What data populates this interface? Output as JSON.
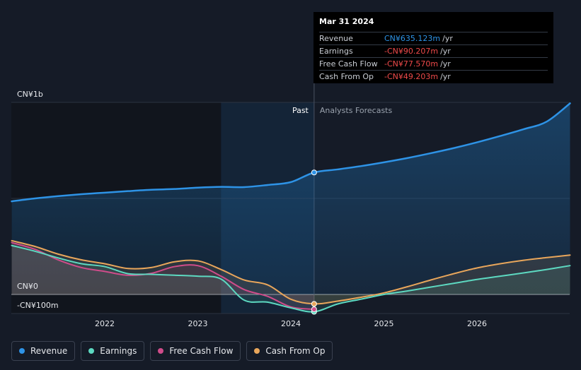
{
  "chart_data": {
    "type": "line",
    "ylim": [
      -100,
      1000
    ],
    "y_ticks": [
      {
        "value": 1000,
        "label": "CN¥1b"
      },
      {
        "value": 0,
        "label": "CN¥0"
      },
      {
        "value": -100,
        "label": "-CN¥100m"
      }
    ],
    "x_ticks": [
      {
        "value": 2022,
        "label": "2022"
      },
      {
        "value": 2023,
        "label": "2023"
      },
      {
        "value": 2024,
        "label": "2024"
      },
      {
        "value": 2025,
        "label": "2025"
      },
      {
        "value": 2026,
        "label": "2026"
      }
    ],
    "xlim": [
      2020.75,
      2027.0
    ],
    "past_label": "Past",
    "forecast_label": "Analysts Forecasts",
    "past_end": 2024.25,
    "highlight_start": 2023.25,
    "series": [
      {
        "name": "Revenue",
        "color": "#2e93e6",
        "points": [
          [
            2021.0,
            485
          ],
          [
            2021.25,
            500
          ],
          [
            2021.5,
            512
          ],
          [
            2021.75,
            522
          ],
          [
            2022.0,
            530
          ],
          [
            2022.25,
            538
          ],
          [
            2022.5,
            545
          ],
          [
            2022.75,
            549
          ],
          [
            2023.0,
            556
          ],
          [
            2023.25,
            560
          ],
          [
            2023.5,
            559
          ],
          [
            2023.75,
            570
          ],
          [
            2024.0,
            585
          ],
          [
            2024.25,
            635.123
          ],
          [
            2024.5,
            651
          ],
          [
            2024.75,
            668
          ],
          [
            2025.0,
            688
          ],
          [
            2025.25,
            710
          ],
          [
            2025.5,
            735
          ],
          [
            2025.75,
            762
          ],
          [
            2026.0,
            792
          ],
          [
            2026.25,
            825
          ],
          [
            2026.5,
            860
          ],
          [
            2026.75,
            900
          ],
          [
            2027.0,
            995
          ]
        ]
      },
      {
        "name": "Earnings",
        "color": "#5dd9c1",
        "points": [
          [
            2021.0,
            255
          ],
          [
            2021.25,
            225
          ],
          [
            2021.5,
            190
          ],
          [
            2021.75,
            160
          ],
          [
            2022.0,
            145
          ],
          [
            2022.25,
            108
          ],
          [
            2022.5,
            105
          ],
          [
            2022.75,
            100
          ],
          [
            2023.0,
            95
          ],
          [
            2023.25,
            80
          ],
          [
            2023.5,
            -30
          ],
          [
            2023.75,
            -40
          ],
          [
            2024.0,
            -70
          ],
          [
            2024.25,
            -90.207
          ],
          [
            2024.5,
            -50
          ],
          [
            2024.75,
            -25
          ],
          [
            2025.0,
            0
          ],
          [
            2025.25,
            18
          ],
          [
            2025.5,
            38
          ],
          [
            2025.75,
            58
          ],
          [
            2026.0,
            78
          ],
          [
            2026.25,
            95
          ],
          [
            2026.5,
            112
          ],
          [
            2026.75,
            130
          ],
          [
            2027.0,
            150
          ]
        ]
      },
      {
        "name": "Free Cash Flow",
        "color": "#cf4c8a",
        "points": [
          [
            2021.0,
            270
          ],
          [
            2021.25,
            235
          ],
          [
            2021.5,
            180
          ],
          [
            2021.75,
            140
          ],
          [
            2022.0,
            120
          ],
          [
            2022.25,
            100
          ],
          [
            2022.5,
            110
          ],
          [
            2022.75,
            145
          ],
          [
            2023.0,
            150
          ],
          [
            2023.25,
            95
          ],
          [
            2023.5,
            25
          ],
          [
            2023.75,
            -10
          ],
          [
            2024.0,
            -65
          ],
          [
            2024.25,
            -77.57
          ]
        ]
      },
      {
        "name": "Cash From Op",
        "color": "#e9a65b",
        "points": [
          [
            2021.0,
            280
          ],
          [
            2021.25,
            250
          ],
          [
            2021.5,
            210
          ],
          [
            2021.75,
            180
          ],
          [
            2022.0,
            160
          ],
          [
            2022.25,
            135
          ],
          [
            2022.5,
            140
          ],
          [
            2022.75,
            170
          ],
          [
            2023.0,
            175
          ],
          [
            2023.25,
            130
          ],
          [
            2023.5,
            75
          ],
          [
            2023.75,
            50
          ],
          [
            2024.0,
            -25
          ],
          [
            2024.25,
            -49.203
          ],
          [
            2024.5,
            -35
          ],
          [
            2024.75,
            -15
          ],
          [
            2025.0,
            8
          ],
          [
            2025.25,
            40
          ],
          [
            2025.5,
            75
          ],
          [
            2025.75,
            108
          ],
          [
            2026.0,
            138
          ],
          [
            2026.25,
            160
          ],
          [
            2026.5,
            178
          ],
          [
            2026.75,
            192
          ],
          [
            2027.0,
            205
          ]
        ]
      }
    ]
  },
  "tooltip": {
    "date": "Mar 31 2024",
    "rows": [
      {
        "label": "Revenue",
        "value": "CN¥635.123m",
        "unit": "/yr",
        "color": "#2e93e6"
      },
      {
        "label": "Earnings",
        "value": "-CN¥90.207m",
        "unit": "/yr",
        "color": "#ef4a4a"
      },
      {
        "label": "Free Cash Flow",
        "value": "-CN¥77.570m",
        "unit": "/yr",
        "color": "#ef4a4a"
      },
      {
        "label": "Cash From Op",
        "value": "-CN¥49.203m",
        "unit": "/yr",
        "color": "#ef4a4a"
      }
    ]
  },
  "legend": [
    {
      "label": "Revenue",
      "color": "#2e93e6"
    },
    {
      "label": "Earnings",
      "color": "#5dd9c1"
    },
    {
      "label": "Free Cash Flow",
      "color": "#cf4c8a"
    },
    {
      "label": "Cash From Op",
      "color": "#e9a65b"
    }
  ]
}
